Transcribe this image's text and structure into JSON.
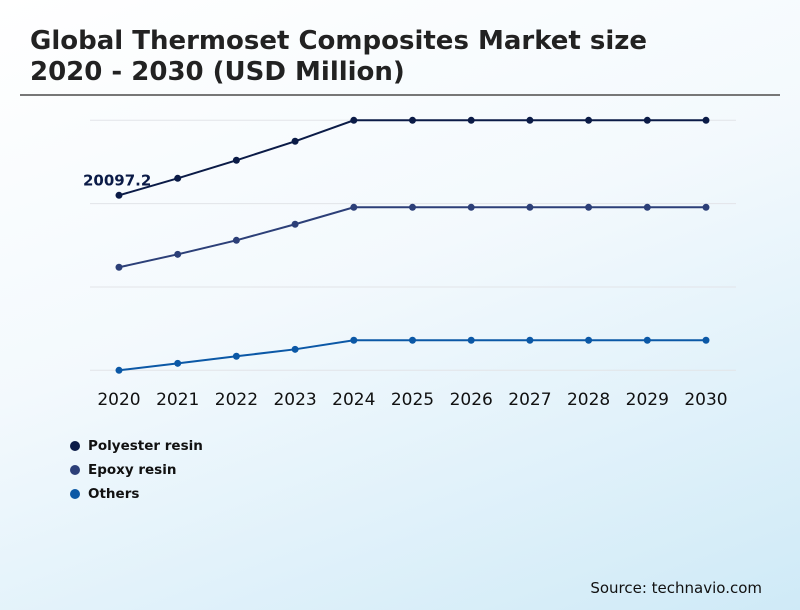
{
  "title_line1": "Global Thermoset Composites Market size",
  "title_line2": "2020 - 2030 (USD Million)",
  "source": "Source: technavio.com",
  "chart_data": {
    "type": "line",
    "title": "Global Thermoset Composites Market size 2020 - 2030 (USD Million)",
    "xlabel": "",
    "ylabel": "",
    "categories": [
      "2020",
      "2021",
      "2022",
      "2023",
      "2024",
      "2025",
      "2026",
      "2027",
      "2028",
      "2029",
      "2030"
    ],
    "ylim": [
      0,
      28710
    ],
    "grid": true,
    "y_tick_labels_shown": false,
    "legend_position": "bottom-left",
    "series": [
      {
        "name": "Polyester resin",
        "color": "#0b1b47",
        "values": [
          20097.2,
          22050,
          24120,
          26300,
          28710,
          28710,
          28710,
          28710,
          28710,
          28710,
          28710
        ]
      },
      {
        "name": "Epoxy resin",
        "color": "#2c3f78",
        "values": [
          11830,
          13320,
          14930,
          16770,
          18720,
          18720,
          18720,
          18720,
          18720,
          18720,
          18720
        ]
      },
      {
        "name": "Others",
        "color": "#0b58a6",
        "values": [
          0,
          800,
          1610,
          2410,
          3450,
          3450,
          3450,
          3450,
          3450,
          3450,
          3450
        ]
      }
    ],
    "annotations": [
      {
        "series": "Polyester resin",
        "x": "2020",
        "label": "20097.2"
      }
    ]
  }
}
